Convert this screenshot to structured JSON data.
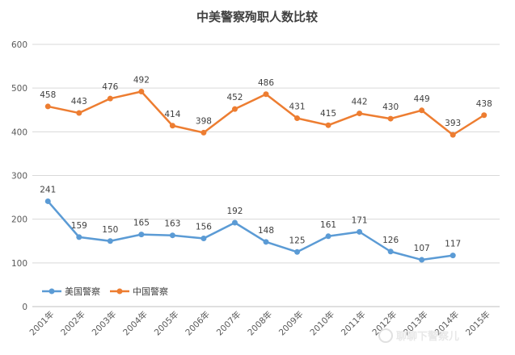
{
  "chart_data": {
    "type": "line",
    "title": "中美警察殉职人数比较",
    "categories": [
      "2001年",
      "2002年",
      "2003年",
      "2004年",
      "2005年",
      "2006年",
      "2007年",
      "2008年",
      "2009年",
      "2010年",
      "2011年",
      "2012年",
      "2013年",
      "2014年",
      "2015年"
    ],
    "series": [
      {
        "name": "美国警察",
        "color": "#5b9bd5",
        "values": [
          241,
          159,
          150,
          165,
          163,
          156,
          192,
          148,
          125,
          161,
          171,
          126,
          107,
          117,
          null
        ]
      },
      {
        "name": "中国警察",
        "color": "#ed7d31",
        "values": [
          458,
          443,
          476,
          492,
          414,
          398,
          452,
          486,
          431,
          415,
          442,
          430,
          449,
          393,
          438
        ]
      }
    ],
    "xlabel": "",
    "ylabel": "",
    "ylim": [
      0,
      600
    ],
    "yticks": [
      0,
      100,
      200,
      300,
      400,
      500,
      600
    ],
    "grid": true,
    "legend_position": "bottom-left"
  },
  "watermark": {
    "text": "聊聊下警察儿"
  }
}
